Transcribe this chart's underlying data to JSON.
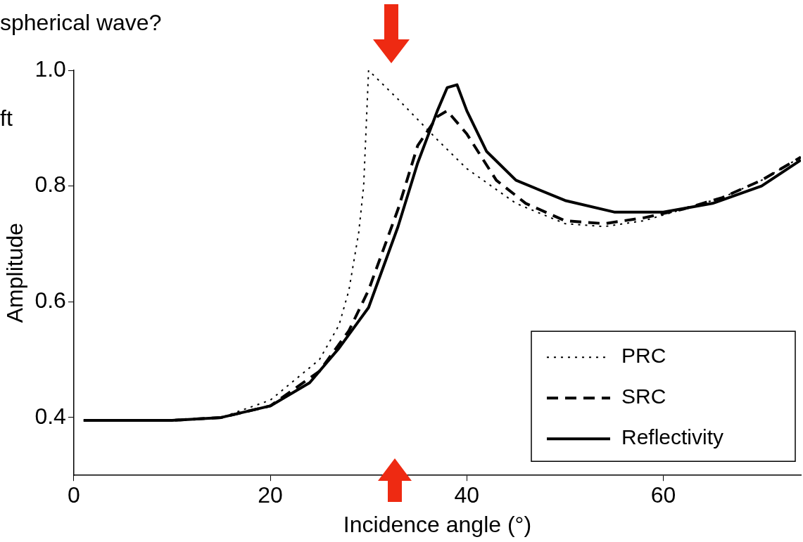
{
  "chart_data": {
    "type": "line",
    "xlabel": "Incidence angle (°)",
    "ylabel": "Amplitude",
    "xlim": [
      0,
      74
    ],
    "xticks": [
      0,
      20,
      40,
      60
    ],
    "ylim": [
      0.3,
      1.0
    ],
    "yticks": [
      0.4,
      0.6,
      0.8,
      {
        "value": 1.0,
        "label": "1.0"
      }
    ],
    "legend": "bottom right",
    "annotations": [
      "spherical wave?",
      "ft"
    ],
    "series": [
      {
        "name": "PRC",
        "color": "#000000",
        "line_style": "dotted",
        "x": [
          1,
          10,
          15,
          20,
          25,
          27,
          28,
          29,
          29.5,
          30,
          33,
          37,
          40,
          45,
          50,
          54,
          58,
          62,
          66,
          70,
          74
        ],
        "values": [
          0.395,
          0.395,
          0.4,
          0.43,
          0.5,
          0.56,
          0.62,
          0.72,
          0.8,
          1.0,
          0.95,
          0.88,
          0.83,
          0.77,
          0.735,
          0.73,
          0.74,
          0.76,
          0.78,
          0.81,
          0.85
        ]
      },
      {
        "name": "SRC",
        "color": "#000000",
        "line_style": "dashed",
        "x": [
          1,
          10,
          15,
          20,
          25,
          28,
          30,
          33,
          35,
          37,
          38,
          40,
          43,
          46,
          50,
          54,
          58,
          62,
          66,
          70,
          74
        ],
        "values": [
          0.395,
          0.395,
          0.4,
          0.42,
          0.48,
          0.55,
          0.62,
          0.76,
          0.87,
          0.92,
          0.93,
          0.89,
          0.81,
          0.77,
          0.74,
          0.735,
          0.745,
          0.76,
          0.78,
          0.81,
          0.85
        ]
      },
      {
        "name": "Reflectivity",
        "color": "#000000",
        "line_style": "solid",
        "x": [
          1,
          10,
          15,
          20,
          24,
          27,
          30,
          33,
          35,
          37,
          38,
          39,
          40,
          42,
          45,
          50,
          55,
          60,
          65,
          70,
          74
        ],
        "values": [
          0.395,
          0.395,
          0.4,
          0.42,
          0.46,
          0.52,
          0.59,
          0.73,
          0.84,
          0.93,
          0.97,
          0.975,
          0.93,
          0.86,
          0.81,
          0.775,
          0.755,
          0.755,
          0.77,
          0.8,
          0.845
        ]
      }
    ]
  }
}
